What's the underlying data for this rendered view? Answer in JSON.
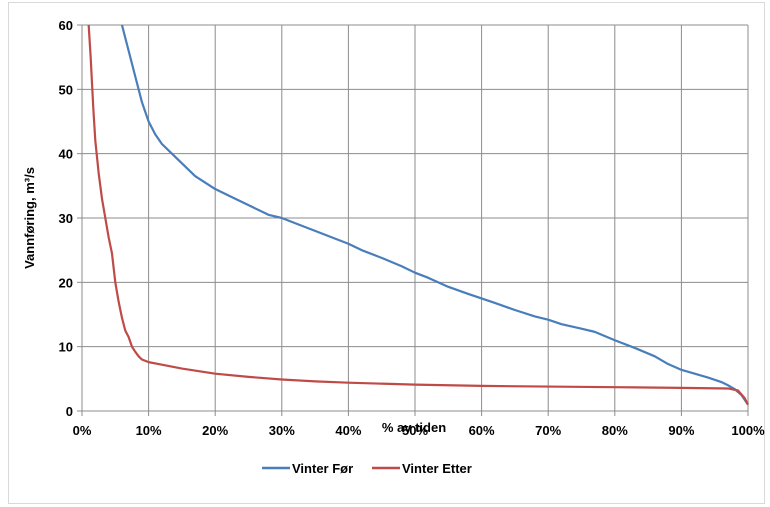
{
  "chart_data": {
    "type": "line",
    "xlabel": "% av tiden",
    "ylabel": "Vannføring, m³/s",
    "xlim": [
      0,
      100
    ],
    "ylim": [
      0,
      60
    ],
    "x_ticks": [
      0,
      10,
      20,
      30,
      40,
      50,
      60,
      70,
      80,
      90,
      100
    ],
    "x_tick_labels": [
      "0%",
      "10%",
      "20%",
      "30%",
      "40%",
      "50%",
      "60%",
      "70%",
      "80%",
      "90%",
      "100%"
    ],
    "y_ticks": [
      0,
      10,
      20,
      30,
      40,
      50,
      60
    ],
    "y_tick_labels": [
      "0",
      "10",
      "20",
      "30",
      "40",
      "50",
      "60"
    ],
    "grid": true,
    "legend_position": "bottom",
    "series": [
      {
        "name": "Vinter Før",
        "color": "#4a7ebb",
        "points": [
          [
            6,
            60
          ],
          [
            7,
            56
          ],
          [
            8,
            52
          ],
          [
            9,
            48
          ],
          [
            10,
            45
          ],
          [
            11,
            43
          ],
          [
            12,
            41.5
          ],
          [
            13,
            40.5
          ],
          [
            15,
            38.5
          ],
          [
            17,
            36.5
          ],
          [
            20,
            34.5
          ],
          [
            22,
            33.5
          ],
          [
            25,
            32
          ],
          [
            28,
            30.5
          ],
          [
            30,
            30
          ],
          [
            33,
            28.8
          ],
          [
            35,
            28
          ],
          [
            38,
            26.8
          ],
          [
            40,
            26
          ],
          [
            42,
            25
          ],
          [
            45,
            23.8
          ],
          [
            48,
            22.5
          ],
          [
            50,
            21.5
          ],
          [
            52,
            20.7
          ],
          [
            55,
            19.3
          ],
          [
            58,
            18.2
          ],
          [
            60,
            17.5
          ],
          [
            62,
            16.8
          ],
          [
            65,
            15.7
          ],
          [
            68,
            14.7
          ],
          [
            70,
            14.2
          ],
          [
            72,
            13.5
          ],
          [
            75,
            12.8
          ],
          [
            77,
            12.3
          ],
          [
            80,
            11
          ],
          [
            83,
            9.8
          ],
          [
            86,
            8.5
          ],
          [
            88,
            7.3
          ],
          [
            90,
            6.4
          ],
          [
            92,
            5.8
          ],
          [
            94,
            5.2
          ],
          [
            96,
            4.5
          ],
          [
            97,
            4
          ],
          [
            98,
            3.4
          ],
          [
            99,
            2.5
          ],
          [
            100,
            1
          ]
        ]
      },
      {
        "name": "Vinter Etter",
        "color": "#be4b48",
        "points": [
          [
            1,
            60
          ],
          [
            1.3,
            55
          ],
          [
            1.7,
            47
          ],
          [
            2,
            42
          ],
          [
            2.5,
            37
          ],
          [
            3,
            33
          ],
          [
            3.5,
            30
          ],
          [
            4,
            27
          ],
          [
            4.5,
            24.5
          ],
          [
            5,
            20
          ],
          [
            5.5,
            17
          ],
          [
            6,
            14.5
          ],
          [
            6.5,
            12.5
          ],
          [
            7,
            11.5
          ],
          [
            7.5,
            10
          ],
          [
            8,
            9.2
          ],
          [
            8.5,
            8.5
          ],
          [
            9,
            8
          ],
          [
            10,
            7.6
          ],
          [
            12,
            7.2
          ],
          [
            15,
            6.6
          ],
          [
            20,
            5.8
          ],
          [
            25,
            5.3
          ],
          [
            30,
            4.9
          ],
          [
            35,
            4.6
          ],
          [
            40,
            4.4
          ],
          [
            50,
            4.1
          ],
          [
            60,
            3.9
          ],
          [
            70,
            3.8
          ],
          [
            80,
            3.7
          ],
          [
            90,
            3.6
          ],
          [
            97,
            3.5
          ],
          [
            98.5,
            3.2
          ],
          [
            99.5,
            2
          ],
          [
            100,
            1
          ]
        ]
      }
    ]
  }
}
